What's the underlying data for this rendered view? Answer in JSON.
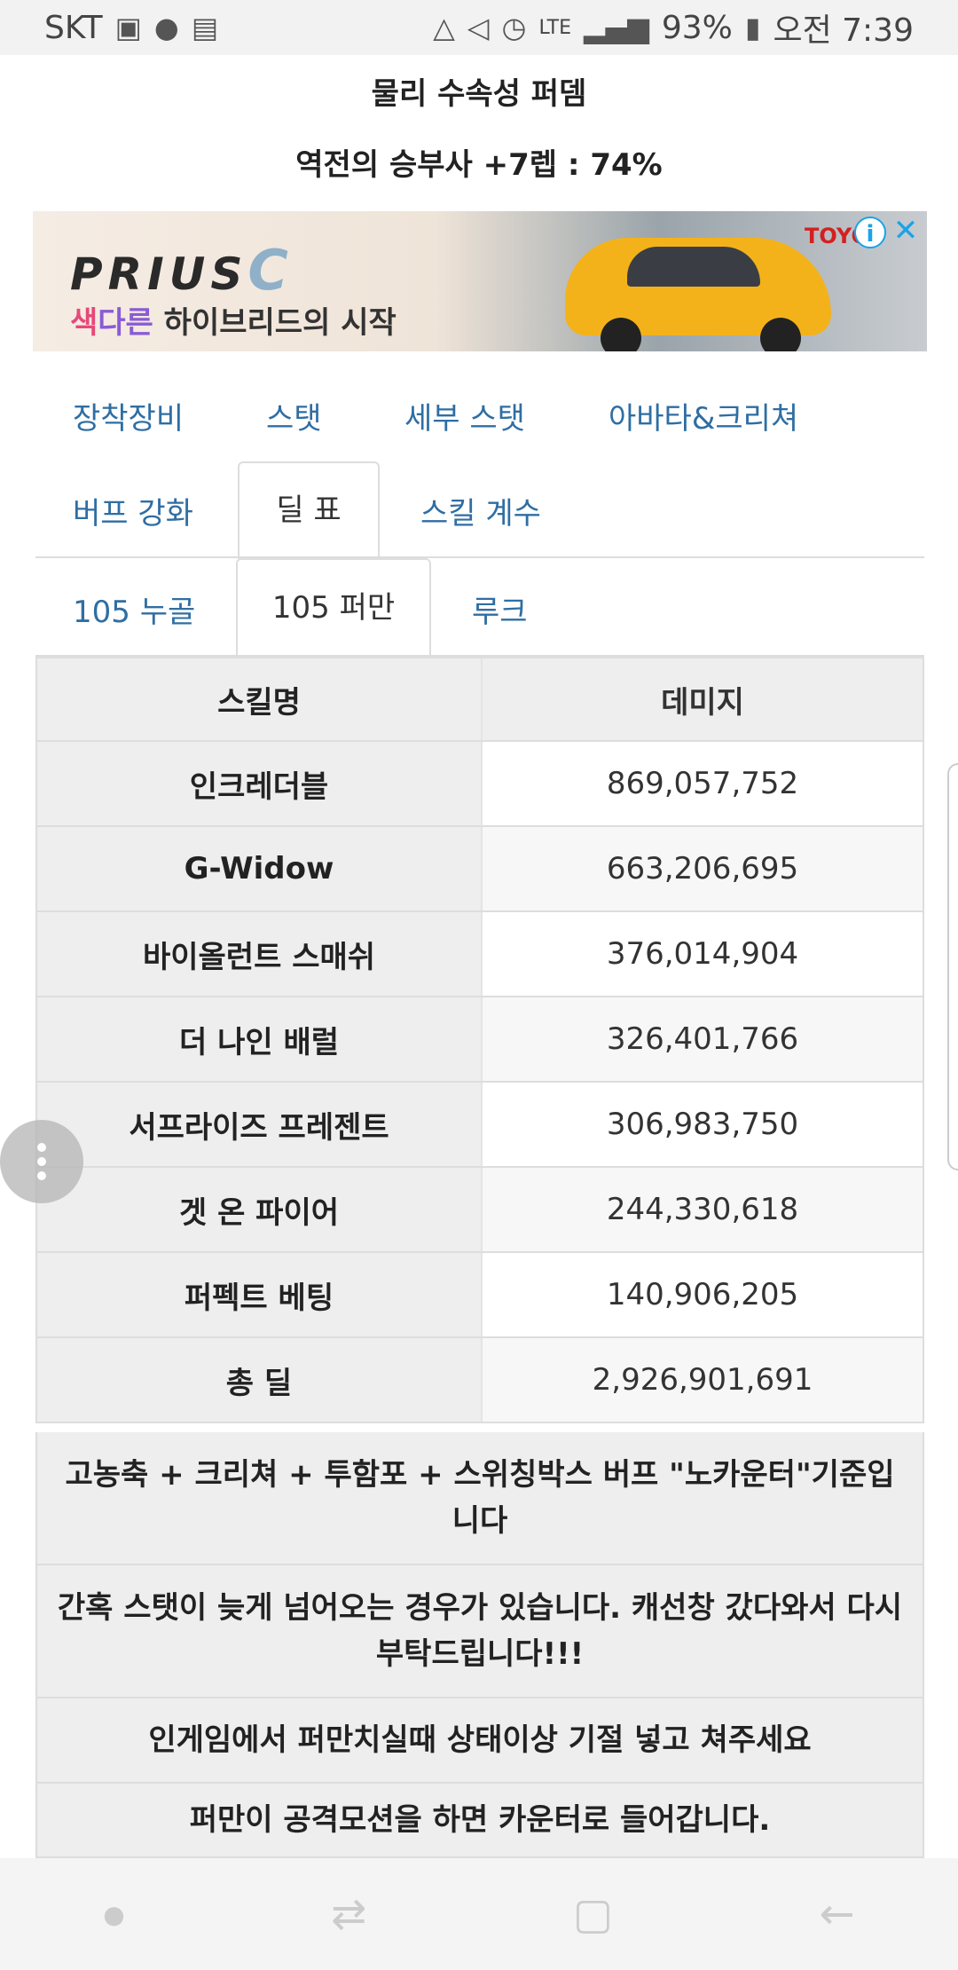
{
  "status_bar": {
    "carrier": "SKT",
    "battery": "93%",
    "time": "오전 7:39",
    "network": "LTE",
    "left_icons": [
      "image-icon",
      "talk-icon",
      "file-icon"
    ],
    "right_icons": [
      "recycle-icon",
      "mute-icon",
      "alarm-icon",
      "lte-icon",
      "signal-icon",
      "battery-icon"
    ]
  },
  "header": {
    "character_name": "물리 수속성 퍼뎀",
    "character_sub": "역전의 승부사 +7렙 : 74%"
  },
  "ad": {
    "brand": "PRIUS",
    "brand_suffix": "C",
    "tagline_prefix_1": "색",
    "tagline_prefix_2": "다른",
    "tagline_rest": " 하이브리드의 시작",
    "maker": "TOYO"
  },
  "tabs_row1": [
    "장착장비",
    "스탯",
    "세부 스탯",
    "아바타&크리쳐"
  ],
  "tabs_row2": {
    "first": "버프 강화",
    "active": "딜 표",
    "third": "스킬 계수"
  },
  "tabs_row3": {
    "first": "105 누골",
    "active": "105 퍼만",
    "third": "루크"
  },
  "table": {
    "header": {
      "name": "스킬명",
      "value": "데미지"
    },
    "rows": [
      {
        "name": "인크레더블",
        "value": "869,057,752"
      },
      {
        "name": "G-Widow",
        "value": "663,206,695"
      },
      {
        "name": "바이올런트 스매쉬",
        "value": "376,014,904"
      },
      {
        "name": "더 나인 배럴",
        "value": "326,401,766"
      },
      {
        "name": "서프라이즈 프레젠트",
        "value": "306,983,750"
      },
      {
        "name": "겟 온 파이어",
        "value": "244,330,618"
      },
      {
        "name": "퍼펙트 베팅",
        "value": "140,906,205"
      },
      {
        "name": "총 딜",
        "value": "2,926,901,691"
      }
    ]
  },
  "notes": [
    "고농축 + 크리쳐 + 투함포 + 스위칭박스 버프 \"노카운터\"기준입니다",
    "간혹 스탯이 늦게 넘어오는 경우가 있습니다. 캐선창 갔다와서 다시 부탁드립니다!!!",
    "인게임에서 퍼만치실때 상태이상 기절 넣고 쳐주세요",
    "퍼만이 공격모션을 하면 카운터로 들어갑니다."
  ],
  "nav_bar": {
    "icons": [
      "dot-icon",
      "recent-apps-icon",
      "home-icon",
      "back-icon"
    ]
  }
}
